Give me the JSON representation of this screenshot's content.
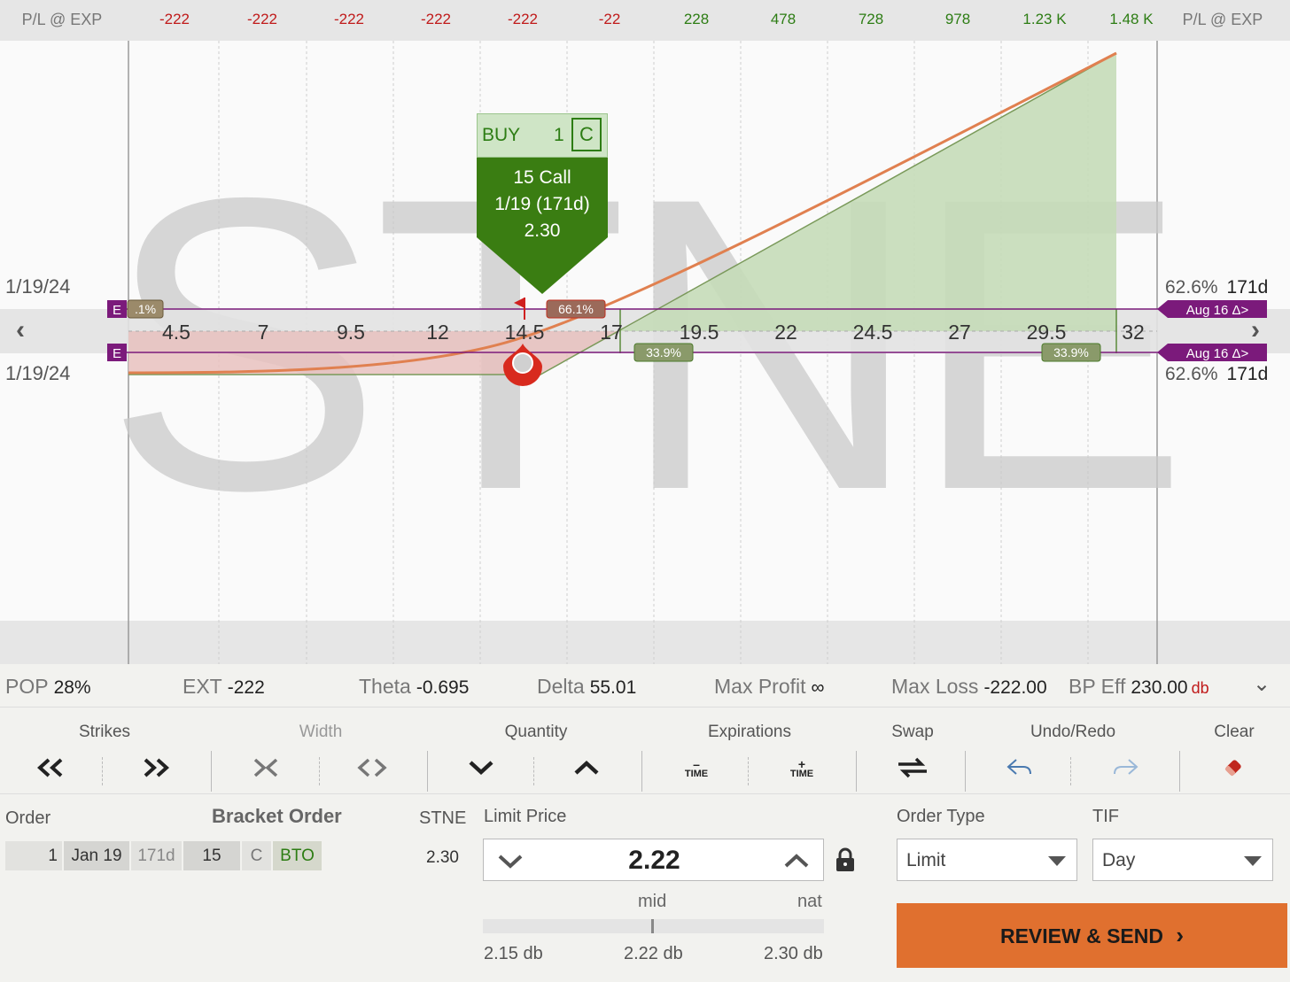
{
  "pl_bar": {
    "left_label": "P/L @ EXP",
    "right_label": "P/L @ EXP",
    "values": [
      "-222",
      "-222",
      "-222",
      "-222",
      "-222",
      "-22",
      "228",
      "478",
      "728",
      "978",
      "1.23 K",
      "1.48 K"
    ]
  },
  "chart": {
    "watermark": "STNE",
    "strikes": [
      "4.5",
      "7",
      "9.5",
      "12",
      "14.5",
      "17",
      "19.5",
      "22",
      "24.5",
      "27",
      "29.5",
      "32"
    ],
    "date_top": "1/19/24",
    "date_bottom": "1/19/24",
    "right_top_pct": "62.6%",
    "right_top_days": "171d",
    "right_bottom_pct": "62.6%",
    "right_bottom_days": "171d",
    "expiry_tag_top": "Aug 16 Δ>",
    "expiry_tag_bottom": "Aug 16 Δ>",
    "e_tag": "E",
    "prob_tags": [
      ".1%",
      "66.1%",
      "33.9%",
      "33.9%"
    ],
    "colors": {
      "profit_fill": "#c5dcb8",
      "loss_fill": "#e8c1be",
      "pl_curve": "#e08050",
      "expiry": "#7b1a7b",
      "tag": "#8a7a5a"
    }
  },
  "popup": {
    "action": "BUY",
    "qty": "1",
    "type": "C",
    "line1": "15 Call",
    "line2": "1/19 (171d)",
    "line3": "2.30"
  },
  "stats": {
    "pop_label": "POP",
    "pop_value": "28%",
    "ext_label": "EXT",
    "ext_value": "-222",
    "theta_label": "Theta",
    "theta_value": "-0.695",
    "delta_label": "Delta",
    "delta_value": "55.01",
    "maxprofit_label": "Max Profit",
    "maxprofit_value": "∞",
    "maxloss_label": "Max Loss",
    "maxloss_value": "-222.00",
    "bp_label": "BP Eff",
    "bp_value": "230.00",
    "bp_suffix": "db"
  },
  "toolbar": {
    "strikes": "Strikes",
    "width": "Width",
    "quantity": "Quantity",
    "expirations": "Expirations",
    "swap": "Swap",
    "undo_redo": "Undo/Redo",
    "clear": "Clear",
    "time_minus": "TIME",
    "time_plus": "TIME"
  },
  "order": {
    "order_label": "Order",
    "bracket_label": "Bracket Order",
    "symbol": "STNE",
    "symbol_price": "2.30",
    "qty": "1",
    "exp": "Jan 19",
    "dte": "171d",
    "strike": "15",
    "type": "C",
    "action": "BTO",
    "limit_label": "Limit Price",
    "limit_value": "2.22",
    "mid_label": "mid",
    "nat_label": "nat",
    "range_low": "2.15 db",
    "range_mid": "2.22 db",
    "range_high": "2.30 db",
    "order_type_label": "Order Type",
    "order_type_value": "Limit",
    "tif_label": "TIF",
    "tif_value": "Day",
    "send_label": "REVIEW & SEND"
  }
}
